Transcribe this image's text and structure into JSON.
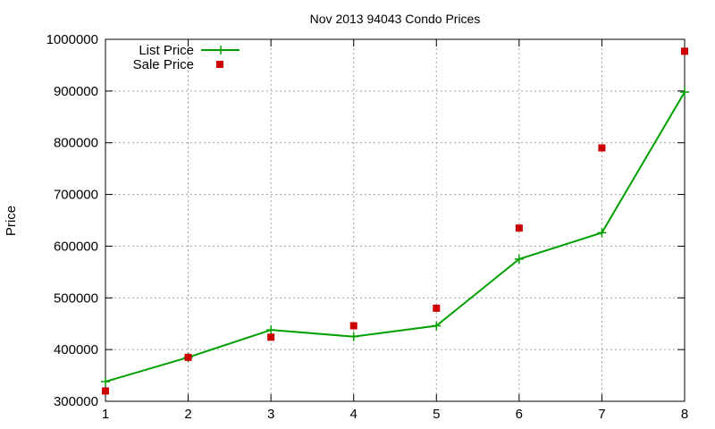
{
  "chart_data": {
    "type": "line",
    "title": "Nov 2013 94043 Condo Prices",
    "xlabel": "",
    "ylabel": "Price",
    "x": [
      1,
      2,
      3,
      4,
      5,
      6,
      7,
      8
    ],
    "xlim": [
      1,
      8
    ],
    "ylim": [
      300000,
      1000000
    ],
    "yticks": [
      300000,
      400000,
      500000,
      600000,
      700000,
      800000,
      900000,
      1000000
    ],
    "xticks": [
      1,
      2,
      3,
      4,
      5,
      6,
      7,
      8
    ],
    "grid": true,
    "legend_position": "top-left",
    "series": [
      {
        "name": "List Price",
        "type": "linespoints",
        "marker": "plus",
        "color": "#00a000",
        "values": [
          338000,
          385000,
          438000,
          425000,
          446000,
          575000,
          626000,
          898000
        ]
      },
      {
        "name": "Sale Price",
        "type": "scatter",
        "marker": "square",
        "color": "#cc0000",
        "values": [
          320000,
          385000,
          424000,
          446000,
          480000,
          635000,
          790000,
          977000
        ]
      }
    ]
  }
}
